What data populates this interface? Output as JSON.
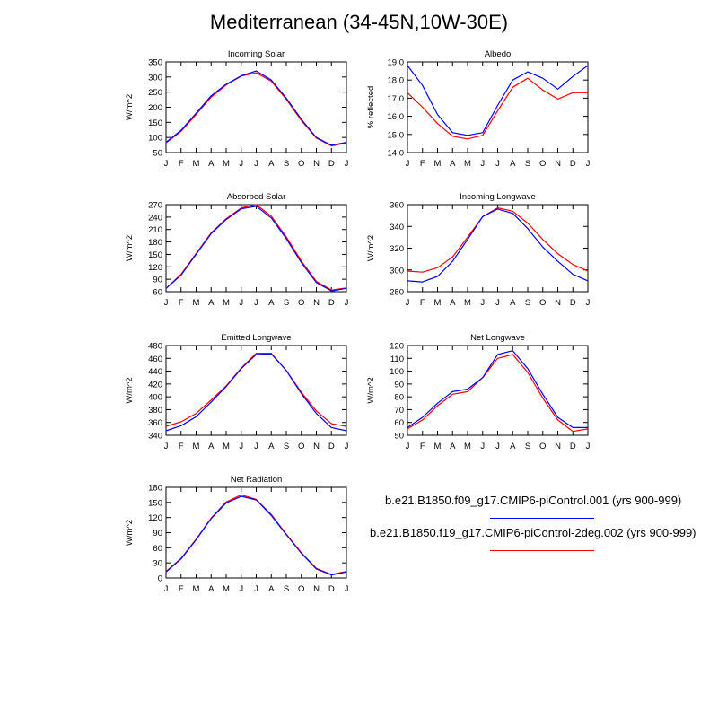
{
  "title": "Mediterranean (34-45N,10W-30E)",
  "colors": {
    "series1": "#0000ff",
    "series2": "#ff0000"
  },
  "legend": {
    "entries": [
      {
        "label": "b.e21.B1850.f09_g17.CMIP6-piControl.001 (yrs 900-999)",
        "color": "#0000ff"
      },
      {
        "label": "b.e21.B1850.f19_g17.CMIP6-piControl-2deg.002 (yrs 900-999)",
        "color": "#ff0000"
      }
    ]
  },
  "chart_data": [
    {
      "type": "line",
      "title": "Incoming Solar",
      "ylabel": "W/m^2",
      "categories": [
        "J",
        "F",
        "M",
        "A",
        "M",
        "J",
        "J",
        "A",
        "S",
        "O",
        "N",
        "D",
        "J"
      ],
      "ylim": [
        50,
        350
      ],
      "yticks": [
        50,
        100,
        150,
        200,
        250,
        300,
        350
      ],
      "series": [
        {
          "values": [
            84,
            124,
            180,
            238,
            276,
            304,
            320,
            290,
            230,
            160,
            100,
            74,
            84
          ]
        },
        {
          "values": [
            82,
            120,
            176,
            234,
            274,
            303,
            314,
            286,
            226,
            156,
            98,
            72,
            82
          ]
        }
      ]
    },
    {
      "type": "line",
      "title": "Albedo",
      "ylabel": "% reflected",
      "categories": [
        "J",
        "F",
        "M",
        "A",
        "M",
        "J",
        "J",
        "A",
        "S",
        "O",
        "N",
        "D",
        "J"
      ],
      "ylim": [
        14.0,
        19.0
      ],
      "yticks": [
        14.0,
        15.0,
        16.0,
        17.0,
        18.0,
        19.0
      ],
      "series": [
        {
          "values": [
            18.8,
            17.7,
            16.1,
            15.1,
            14.95,
            15.1,
            16.6,
            18.0,
            18.45,
            18.1,
            17.5,
            18.2,
            18.8
          ]
        },
        {
          "values": [
            17.3,
            16.5,
            15.6,
            14.9,
            14.75,
            14.95,
            16.3,
            17.6,
            18.1,
            17.45,
            16.95,
            17.3,
            17.3
          ]
        }
      ]
    },
    {
      "type": "line",
      "title": "Absorbed Solar",
      "ylabel": "W/m^2",
      "categories": [
        "J",
        "F",
        "M",
        "A",
        "M",
        "J",
        "J",
        "A",
        "S",
        "O",
        "N",
        "D",
        "J"
      ],
      "ylim": [
        60,
        270
      ],
      "yticks": [
        60,
        90,
        120,
        150,
        180,
        210,
        240,
        270
      ],
      "series": [
        {
          "values": [
            68,
            100,
            150,
            200,
            234,
            260,
            266,
            238,
            188,
            130,
            82,
            62,
            68
          ]
        },
        {
          "values": [
            68,
            102,
            152,
            202,
            236,
            262,
            270,
            242,
            192,
            134,
            85,
            64,
            69
          ]
        }
      ]
    },
    {
      "type": "line",
      "title": "Incoming Longwave",
      "ylabel": "W/m^2",
      "categories": [
        "J",
        "F",
        "M",
        "A",
        "M",
        "J",
        "J",
        "A",
        "S",
        "O",
        "N",
        "D",
        "J"
      ],
      "ylim": [
        280,
        360
      ],
      "yticks": [
        280,
        300,
        320,
        340,
        360
      ],
      "series": [
        {
          "values": [
            290,
            289,
            294,
            308,
            328,
            349,
            356,
            352,
            338,
            321,
            308,
            296,
            290
          ]
        },
        {
          "values": [
            299,
            298,
            302,
            312,
            330,
            349,
            357,
            354,
            343,
            328,
            315,
            305,
            299
          ]
        }
      ]
    },
    {
      "type": "line",
      "title": "Emitted Longwave",
      "ylabel": "W/m^2",
      "categories": [
        "J",
        "F",
        "M",
        "A",
        "M",
        "J",
        "J",
        "A",
        "S",
        "O",
        "N",
        "D",
        "J"
      ],
      "ylim": [
        340,
        480
      ],
      "yticks": [
        340,
        360,
        380,
        400,
        420,
        440,
        460,
        480
      ],
      "series": [
        {
          "values": [
            347,
            355,
            369,
            392,
            416,
            444,
            466,
            467,
            441,
            405,
            374,
            352,
            347
          ]
        },
        {
          "values": [
            354,
            361,
            374,
            395,
            417,
            445,
            468,
            468,
            441,
            407,
            378,
            358,
            354
          ]
        }
      ]
    },
    {
      "type": "line",
      "title": "Net Longwave",
      "ylabel": "W/m^2",
      "categories": [
        "J",
        "F",
        "M",
        "A",
        "M",
        "J",
        "J",
        "A",
        "S",
        "O",
        "N",
        "D",
        "J"
      ],
      "ylim": [
        50,
        120
      ],
      "yticks": [
        50,
        60,
        70,
        80,
        90,
        100,
        110,
        120
      ],
      "series": [
        {
          "values": [
            56,
            64,
            75,
            84,
            86,
            95,
            113,
            116,
            102,
            82,
            64,
            56,
            56
          ]
        },
        {
          "values": [
            55,
            62,
            73,
            82,
            84,
            95,
            110,
            113,
            99,
            79,
            62,
            53,
            55
          ]
        }
      ]
    },
    {
      "type": "line",
      "title": "Net Radiation",
      "ylabel": "W/m^2",
      "categories": [
        "J",
        "F",
        "M",
        "A",
        "M",
        "J",
        "J",
        "A",
        "S",
        "O",
        "N",
        "D",
        "J"
      ],
      "ylim": [
        0,
        180
      ],
      "yticks": [
        0,
        30,
        60,
        90,
        120,
        150,
        180
      ],
      "series": [
        {
          "values": [
            12,
            38,
            76,
            118,
            149,
            162,
            155,
            124,
            86,
            49,
            18,
            6,
            12
          ]
        },
        {
          "values": [
            13,
            39,
            77,
            119,
            151,
            165,
            156,
            126,
            87,
            50,
            19,
            7,
            13
          ]
        }
      ]
    }
  ]
}
